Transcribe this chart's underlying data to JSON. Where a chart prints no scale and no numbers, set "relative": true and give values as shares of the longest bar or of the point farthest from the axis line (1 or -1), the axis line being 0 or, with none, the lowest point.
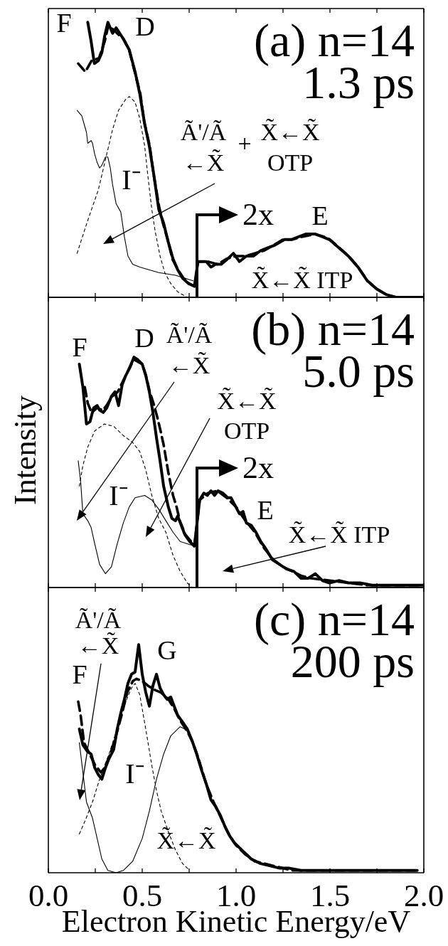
{
  "chart_data": [
    {
      "type": "line",
      "title": "(a) n=14",
      "subtitle": "1.3 ps",
      "relative": true,
      "xlim": [
        0,
        2
      ],
      "xticks": [
        0,
        0.25,
        0.5,
        0.75,
        1,
        1.25,
        1.5,
        1.75,
        2
      ],
      "tick_labels": false,
      "series": [
        {
          "color": "#000000",
          "line_style": "solid",
          "x": [
            0.21,
            0.228,
            0.245,
            0.266,
            0.285,
            0.3,
            0.317,
            0.342,
            0.361,
            0.399,
            0.431,
            0.462,
            0.487,
            0.513,
            0.538,
            0.563,
            0.588,
            0.614,
            0.639,
            0.664,
            0.689,
            0.715,
            0.746,
            0.778,
            0.797,
            0.82,
            0.841,
            0.866,
            0.891,
            0.92,
            0.955,
            0.986,
            1.018,
            1.055,
            1.093,
            1.131,
            1.169,
            1.207,
            1.258,
            1.295,
            1.333,
            1.371,
            1.422,
            1.46,
            1.497,
            1.548,
            1.598,
            1.649,
            1.699,
            1.75,
            1.8,
            1.851,
            1.939,
            2.0
          ],
          "values": [
            1.0,
            0.93,
            0.85,
            0.86,
            0.89,
            0.95,
            1.0,
            0.96,
            0.98,
            0.94,
            0.9,
            0.82,
            0.74,
            0.63,
            0.55,
            0.44,
            0.32,
            0.27,
            0.2,
            0.14,
            0.1,
            0.07,
            0.05,
            0.04,
            0.13,
            0.13,
            0.13,
            0.11,
            0.12,
            0.12,
            0.14,
            0.16,
            0.13,
            0.15,
            0.15,
            0.17,
            0.18,
            0.19,
            0.21,
            0.21,
            0.22,
            0.23,
            0.23,
            0.22,
            0.21,
            0.18,
            0.15,
            0.11,
            0.06,
            0.03,
            0.01,
            0,
            0,
            0
          ]
        },
        {
          "color": "#000000",
          "line_style": "dashed",
          "x": [
            0.159,
            0.197,
            0.23,
            0.27,
            0.3,
            0.32,
            0.35,
            0.4,
            0.43,
            0.46,
            0.49,
            0.51,
            0.54,
            0.56,
            0.59,
            0.61,
            0.64,
            0.66,
            0.69,
            0.72,
            0.75,
            0.78,
            0.797,
            0.85,
            0.9,
            0.95,
            1.0,
            1.05,
            1.1,
            1.15,
            1.2,
            1.25,
            1.3,
            1.35,
            1.42,
            1.47,
            1.5,
            1.55,
            1.6,
            1.65,
            1.7,
            1.75,
            1.8,
            1.85,
            2.0
          ],
          "values": [
            0.85,
            0.82,
            0.86,
            0.87,
            0.93,
            0.99,
            0.97,
            0.94,
            0.9,
            0.82,
            0.74,
            0.64,
            0.55,
            0.45,
            0.33,
            0.27,
            0.2,
            0.14,
            0.1,
            0.07,
            0.05,
            0.04,
            0.13,
            0.13,
            0.12,
            0.14,
            0.15,
            0.15,
            0.16,
            0.17,
            0.19,
            0.21,
            0.21,
            0.22,
            0.23,
            0.22,
            0.21,
            0.18,
            0.15,
            0.11,
            0.06,
            0.03,
            0.01,
            0,
            0
          ]
        },
        {
          "color": "#000000",
          "line_style": "solid",
          "x": [
            0.153,
            0.178,
            0.203,
            0.21,
            0.228,
            0.235,
            0.247,
            0.26,
            0.273,
            0.285,
            0.304,
            0.317,
            0.33,
            0.342,
            0.361,
            0.386,
            0.405,
            0.424,
            0.449,
            0.487,
            0.588,
            0.677,
            0.771
          ],
          "values": [
            0.68,
            0.66,
            0.6,
            0.56,
            0.57,
            0.56,
            0.52,
            0.49,
            0.47,
            0.48,
            0.51,
            0.51,
            0.47,
            0.41,
            0.34,
            0.31,
            0.22,
            0.15,
            0.12,
            0.11,
            0.09,
            0.08,
            0.06
          ]
        },
        {
          "color": "#000000",
          "line_style": "dashed",
          "x": [
            0.153,
            0.21,
            0.266,
            0.304,
            0.342,
            0.374,
            0.412,
            0.431,
            0.462,
            0.487,
            0.513,
            0.532,
            0.551,
            0.569,
            0.595,
            0.62,
            0.652,
            0.689,
            0.74
          ],
          "values": [
            0.16,
            0.28,
            0.39,
            0.5,
            0.61,
            0.68,
            0.72,
            0.73,
            0.71,
            0.65,
            0.55,
            0.43,
            0.32,
            0.24,
            0.15,
            0.09,
            0.05,
            0.02,
            0.0
          ]
        }
      ],
      "annotations": [
        "F",
        "D",
        "I⁻",
        "Ã'/Ã\n←X̃",
        "+",
        "X̃←X̃\nOTP",
        "2x",
        "E",
        "X̃←X̃ ITP"
      ]
    },
    {
      "type": "line",
      "title": "(b) n=14",
      "subtitle": "5.0 ps",
      "ylabel": "Intensity",
      "relative": true,
      "xlim": [
        0,
        2
      ],
      "xticks": [
        0,
        0.25,
        0.5,
        0.75,
        1,
        1.25,
        1.5,
        1.75,
        2
      ],
      "tick_labels": false,
      "series": [
        {
          "color": "#000000",
          "line_style": "solid",
          "x": [
            0.165,
            0.184,
            0.203,
            0.222,
            0.241,
            0.26,
            0.273,
            0.292,
            0.311,
            0.336,
            0.355,
            0.374,
            0.393,
            0.412,
            0.431,
            0.456,
            0.475,
            0.5,
            0.519,
            0.538,
            0.557,
            0.576,
            0.595,
            0.614,
            0.639,
            0.658,
            0.677,
            0.689,
            0.708,
            0.727,
            0.753,
            0.778,
            0.806,
            0.828,
            0.847,
            0.866,
            0.885,
            0.904,
            0.929,
            0.955,
            0.973,
            0.992,
            1.018,
            1.037,
            1.055,
            1.081,
            1.106,
            1.131,
            1.157,
            1.194,
            1.232,
            1.27,
            1.308,
            1.346,
            1.384,
            1.422,
            1.46,
            1.497,
            1.548,
            1.598,
            1.661,
            1.724,
            1.826,
            1.914,
            2.0
          ],
          "values": [
            0.97,
            0.87,
            0.71,
            0.72,
            0.78,
            0.79,
            0.77,
            0.76,
            0.78,
            0.83,
            0.85,
            0.79,
            0.88,
            0.92,
            0.95,
            1.0,
            0.99,
            0.97,
            0.92,
            0.85,
            0.76,
            0.65,
            0.55,
            0.44,
            0.35,
            0.3,
            0.29,
            0.31,
            0.27,
            0.23,
            0.2,
            0.18,
            0.38,
            0.41,
            0.4,
            0.42,
            0.4,
            0.42,
            0.41,
            0.39,
            0.39,
            0.36,
            0.32,
            0.33,
            0.28,
            0.27,
            0.24,
            0.2,
            0.17,
            0.12,
            0.1,
            0.08,
            0.07,
            0.04,
            0.04,
            0.06,
            0.03,
            0.02,
            0.03,
            0.02,
            0.02,
            0.01,
            0.01,
            0.01,
            0.01
          ]
        },
        {
          "color": "#000000",
          "line_style": "dashed",
          "x": [
            0.194,
            0.21,
            0.23,
            0.26,
            0.29,
            0.31,
            0.34,
            0.37,
            0.4,
            0.43,
            0.456,
            0.5,
            0.52,
            0.54,
            0.56,
            0.58,
            0.595,
            0.614,
            0.639,
            0.664,
            0.683,
            0.7,
            0.73,
            0.76,
            0.778,
            0.806,
            0.85,
            0.9,
            0.95,
            1.0,
            1.05,
            1.1,
            1.15,
            1.2,
            1.25,
            1.3,
            1.35,
            1.4,
            1.5,
            1.6,
            1.7,
            1.8,
            1.9,
            2.0
          ],
          "values": [
            0.87,
            0.8,
            0.76,
            0.78,
            0.77,
            0.79,
            0.83,
            0.85,
            0.9,
            0.95,
            0.99,
            0.97,
            0.92,
            0.85,
            0.8,
            0.74,
            0.69,
            0.62,
            0.5,
            0.4,
            0.35,
            0.29,
            0.23,
            0.2,
            0.18,
            0.38,
            0.41,
            0.42,
            0.39,
            0.35,
            0.29,
            0.24,
            0.17,
            0.12,
            0.09,
            0.07,
            0.05,
            0.04,
            0.03,
            0.02,
            0.01,
            0.01,
            0.01,
            0.01
          ]
        },
        {
          "color": "#000000",
          "line_style": "solid",
          "x": [
            0.159,
            0.172,
            0.184,
            0.21,
            0.228,
            0.247,
            0.273,
            0.304,
            0.336,
            0.367,
            0.399,
            0.431,
            0.462,
            0.513,
            0.551,
            0.588,
            0.626,
            0.664,
            0.702,
            0.74,
            0.778
          ],
          "values": [
            0.55,
            0.46,
            0.32,
            0.29,
            0.26,
            0.19,
            0.1,
            0.06,
            0.09,
            0.19,
            0.28,
            0.35,
            0.39,
            0.4,
            0.38,
            0.34,
            0.29,
            0.24,
            0.2,
            0.19,
            0.18
          ]
        },
        {
          "color": "#000000",
          "line_style": "dashed",
          "x": [
            0.165,
            0.184,
            0.21,
            0.247,
            0.298,
            0.348,
            0.399,
            0.449,
            0.487,
            0.519,
            0.551,
            0.588,
            0.626,
            0.664,
            0.702,
            0.74,
            0.765
          ],
          "values": [
            0.44,
            0.53,
            0.61,
            0.68,
            0.71,
            0.7,
            0.66,
            0.63,
            0.59,
            0.51,
            0.4,
            0.3,
            0.24,
            0.14,
            0.07,
            0.02,
            0.0
          ]
        }
      ],
      "annotations": [
        "F",
        "D",
        "Ã'/Ã\n←X̃",
        "X̃←X̃\nOTP",
        "2x",
        "I⁻",
        "E",
        "X̃←X̃ ITP"
      ]
    },
    {
      "type": "line",
      "title": "(c) n=14",
      "subtitle": "200 ps",
      "xlabel": "Electron Kinetic Energy/eV",
      "relative": true,
      "xlim": [
        0,
        2
      ],
      "xticks": [
        {
          "value": 0,
          "label": "0.0"
        },
        {
          "value": 0.25,
          "label": null
        },
        {
          "value": 0.5,
          "label": "0.5"
        },
        {
          "value": 0.75,
          "label": null
        },
        {
          "value": 1,
          "label": "1.0"
        },
        {
          "value": 1.25,
          "label": null
        },
        {
          "value": 1.5,
          "label": "1.5"
        },
        {
          "value": 1.75,
          "label": null
        },
        {
          "value": 2,
          "label": "2.0"
        }
      ],
      "series": [
        {
          "color": "#000000",
          "line_style": "solid",
          "x": [
            0.165,
            0.184,
            0.21,
            0.228,
            0.247,
            0.266,
            0.285,
            0.304,
            0.323,
            0.348,
            0.367,
            0.386,
            0.405,
            0.424,
            0.443,
            0.462,
            0.481,
            0.5,
            0.519,
            0.538,
            0.557,
            0.576,
            0.595,
            0.614,
            0.633,
            0.652,
            0.67,
            0.689,
            0.715,
            0.74,
            0.765,
            0.79,
            0.816,
            0.841,
            0.866,
            0.891,
            0.917,
            0.942,
            0.967,
            0.992,
            1.03,
            1.081,
            1.131,
            1.182,
            1.232,
            1.28,
            1.346,
            1.47,
            1.598,
            1.724,
            1.965
          ],
          "values": [
            0.63,
            0.56,
            0.53,
            0.52,
            0.46,
            0.43,
            0.41,
            0.46,
            0.5,
            0.54,
            0.63,
            0.7,
            0.76,
            0.83,
            0.87,
            0.88,
            1.0,
            0.87,
            0.79,
            0.73,
            0.82,
            0.87,
            0.81,
            0.78,
            0.76,
            0.77,
            0.73,
            0.69,
            0.66,
            0.63,
            0.58,
            0.52,
            0.45,
            0.39,
            0.32,
            0.29,
            0.25,
            0.2,
            0.16,
            0.13,
            0.1,
            0.06,
            0.04,
            0.03,
            0.02,
            0.02,
            0.01,
            0.01,
            0.01,
            0.01,
            0.01
          ]
        },
        {
          "color": "#000000",
          "line_style": "dashed",
          "x": [
            0.159,
            0.172,
            0.19,
            0.22,
            0.25,
            0.28,
            0.3,
            0.33,
            0.36,
            0.39,
            0.42,
            0.45,
            0.47,
            0.5,
            0.53,
            0.57,
            0.6,
            0.64,
            0.67,
            0.7,
            0.74,
            0.77,
            0.8,
            0.84,
            0.88,
            0.92,
            0.96,
            1.0,
            1.05,
            1.1,
            1.15,
            1.2,
            1.3,
            1.4,
            1.6,
            1.8,
            1.965
          ],
          "values": [
            0.75,
            0.69,
            0.57,
            0.52,
            0.47,
            0.44,
            0.46,
            0.52,
            0.6,
            0.69,
            0.79,
            0.84,
            0.85,
            0.84,
            0.82,
            0.8,
            0.79,
            0.76,
            0.72,
            0.67,
            0.62,
            0.57,
            0.5,
            0.39,
            0.31,
            0.24,
            0.17,
            0.12,
            0.08,
            0.05,
            0.04,
            0.03,
            0.01,
            0.01,
            0.01,
            0.01,
            0.01
          ]
        },
        {
          "color": "#000000",
          "line_style": "solid",
          "x": [
            0.165,
            0.184,
            0.203,
            0.235,
            0.26,
            0.285,
            0.317,
            0.361,
            0.399,
            0.449,
            0.5,
            0.538,
            0.576,
            0.614,
            0.652,
            0.702,
            0.727
          ],
          "values": [
            0.57,
            0.44,
            0.31,
            0.24,
            0.15,
            0.06,
            0.01,
            0.0,
            0.01,
            0.05,
            0.15,
            0.27,
            0.41,
            0.52,
            0.6,
            0.64,
            0.63
          ]
        },
        {
          "color": "#000000",
          "line_style": "dashed",
          "x": [
            0.165,
            0.197,
            0.235,
            0.273,
            0.323,
            0.374,
            0.412,
            0.443,
            0.462,
            0.487,
            0.506,
            0.525,
            0.551,
            0.576,
            0.601,
            0.639,
            0.677,
            0.715,
            0.753
          ],
          "values": [
            0.17,
            0.23,
            0.31,
            0.41,
            0.52,
            0.65,
            0.75,
            0.81,
            0.83,
            0.78,
            0.69,
            0.6,
            0.47,
            0.36,
            0.27,
            0.18,
            0.1,
            0.04,
            0.01
          ]
        }
      ],
      "annotations": [
        "Ã'/Ã\n←X̃",
        "F",
        "G",
        "I⁻",
        "X̃←X̃"
      ]
    }
  ]
}
